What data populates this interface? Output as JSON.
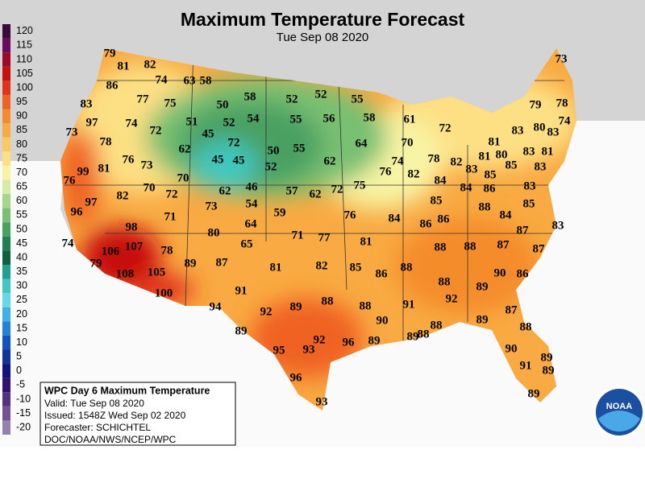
{
  "title": "Maximum Temperature Forecast",
  "subtitle": "Tue Sep 08 2020",
  "legend": [
    {
      "value": 120,
      "color": "#3a0a3a"
    },
    {
      "value": 115,
      "color": "#6a0a5a"
    },
    {
      "value": 110,
      "color": "#9c0a2a"
    },
    {
      "value": 105,
      "color": "#c8100c"
    },
    {
      "value": 100,
      "color": "#e2321a"
    },
    {
      "value": 95,
      "color": "#f06222"
    },
    {
      "value": 90,
      "color": "#f58c2c"
    },
    {
      "value": 85,
      "color": "#f9aa42"
    },
    {
      "value": 80,
      "color": "#fbc862"
    },
    {
      "value": 75,
      "color": "#fde084"
    },
    {
      "value": 70,
      "color": "#f8f4a4"
    },
    {
      "value": 65,
      "color": "#d6eca0"
    },
    {
      "value": 60,
      "color": "#a6d68a"
    },
    {
      "value": 55,
      "color": "#78c072"
    },
    {
      "value": 50,
      "color": "#48a062"
    },
    {
      "value": 45,
      "color": "#208052"
    },
    {
      "value": 40,
      "color": "#106042"
    },
    {
      "value": 35,
      "color": "#20a092"
    },
    {
      "value": 30,
      "color": "#40c8c0"
    },
    {
      "value": 25,
      "color": "#62d8e8"
    },
    {
      "value": 20,
      "color": "#42b0e8"
    },
    {
      "value": 15,
      "color": "#2282d8"
    },
    {
      "value": 10,
      "color": "#1252c0"
    },
    {
      "value": 5,
      "color": "#1232a0"
    },
    {
      "value": 0,
      "color": "#121282"
    },
    {
      "value": -5,
      "color": "#321272"
    },
    {
      "value": -10,
      "color": "#523282"
    },
    {
      "value": -15,
      "color": "#725292"
    },
    {
      "value": -20,
      "color": "#9282b2"
    }
  ],
  "points": [
    79,
    81,
    82,
    86,
    74,
    63,
    58,
    77,
    75,
    50,
    58,
    52,
    52,
    55,
    73,
    83,
    79,
    78,
    97,
    74,
    72,
    51,
    52,
    54,
    55,
    56,
    58,
    61,
    72,
    83,
    80,
    74,
    83,
    73,
    78,
    45,
    72,
    50,
    55,
    64,
    70,
    81,
    83,
    81,
    62,
    76,
    73,
    45,
    45,
    52,
    62,
    74,
    78,
    81,
    80,
    83,
    82,
    85,
    85,
    83,
    76,
    99,
    81,
    70,
    76,
    82,
    84,
    84,
    83,
    70,
    72,
    62,
    46,
    57,
    62,
    72,
    75,
    86,
    97,
    82,
    73,
    54,
    85,
    88,
    85,
    83,
    96,
    71,
    59,
    76,
    84,
    86,
    86,
    84,
    98,
    64,
    87,
    80,
    71,
    77,
    81,
    74,
    106,
    107,
    78,
    65,
    88,
    88,
    87,
    87,
    79,
    89,
    87,
    81,
    82,
    85,
    86,
    88,
    90,
    86,
    108,
    105,
    88,
    89,
    91,
    100,
    92,
    94,
    89,
    88,
    88,
    91,
    87,
    92,
    90,
    88,
    89,
    88,
    89,
    89,
    89,
    88,
    92,
    96,
    95,
    93,
    90,
    89,
    91,
    89,
    96,
    89,
    93
  ],
  "info": {
    "heading": "WPC Day 6 Maximum Temperature",
    "lines": [
      "Valid: Tue Sep 08 2020",
      "Issued: 1548Z Wed Sep 02 2020",
      "Forecaster: SCHICHTEL",
      "DOC/NOAA/NWS/NCEP/WPC"
    ]
  },
  "logo": "NOAA"
}
